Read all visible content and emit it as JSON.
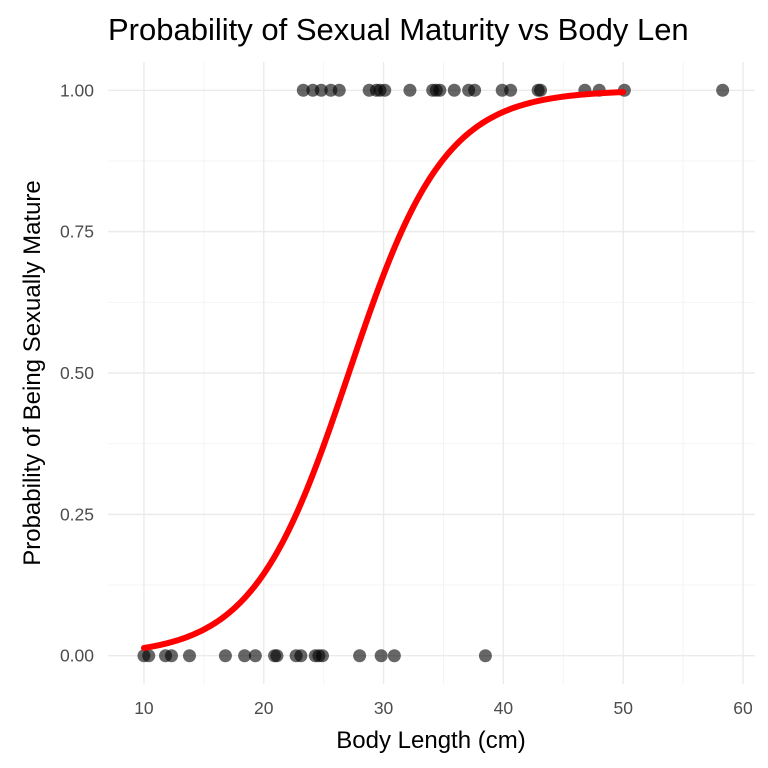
{
  "chart_data": {
    "type": "scatter",
    "title": "Probability of Sexual Maturity vs Body Len",
    "xlabel": "Body Length (cm)",
    "ylabel": "Probability of Being Sexually Mature",
    "xlim": [
      7,
      61
    ],
    "ylim": [
      -0.05,
      1.05
    ],
    "x_ticks": [
      10,
      20,
      30,
      40,
      50,
      60
    ],
    "x_tick_labels": [
      "10",
      "20",
      "30",
      "40",
      "50",
      "60"
    ],
    "y_ticks": [
      0,
      0.25,
      0.5,
      0.75,
      1
    ],
    "y_tick_labels": [
      "0.00",
      "0.25",
      "0.50",
      "0.75",
      "1.00"
    ],
    "grid": true,
    "legend": "none",
    "series": [
      {
        "type": "scatter",
        "color": "#000000",
        "opacity": 0.6,
        "points": [
          {
            "x": 10.0,
            "y": 0
          },
          {
            "x": 10.4,
            "y": 0
          },
          {
            "x": 11.8,
            "y": 0
          },
          {
            "x": 12.3,
            "y": 0
          },
          {
            "x": 13.8,
            "y": 0
          },
          {
            "x": 16.8,
            "y": 0
          },
          {
            "x": 18.4,
            "y": 0
          },
          {
            "x": 19.3,
            "y": 0
          },
          {
            "x": 20.9,
            "y": 0
          },
          {
            "x": 21.1,
            "y": 0
          },
          {
            "x": 22.7,
            "y": 0
          },
          {
            "x": 23.1,
            "y": 0
          },
          {
            "x": 24.3,
            "y": 0
          },
          {
            "x": 24.6,
            "y": 0
          },
          {
            "x": 24.9,
            "y": 0
          },
          {
            "x": 28.0,
            "y": 0
          },
          {
            "x": 29.8,
            "y": 0
          },
          {
            "x": 30.9,
            "y": 0
          },
          {
            "x": 38.5,
            "y": 0
          },
          {
            "x": 23.3,
            "y": 1
          },
          {
            "x": 24.1,
            "y": 1
          },
          {
            "x": 24.8,
            "y": 1
          },
          {
            "x": 25.6,
            "y": 1
          },
          {
            "x": 26.3,
            "y": 1
          },
          {
            "x": 28.8,
            "y": 1
          },
          {
            "x": 29.4,
            "y": 1
          },
          {
            "x": 29.7,
            "y": 1
          },
          {
            "x": 30.1,
            "y": 1
          },
          {
            "x": 32.2,
            "y": 1
          },
          {
            "x": 34.1,
            "y": 1
          },
          {
            "x": 34.4,
            "y": 1
          },
          {
            "x": 34.7,
            "y": 1
          },
          {
            "x": 35.9,
            "y": 1
          },
          {
            "x": 37.1,
            "y": 1
          },
          {
            "x": 37.6,
            "y": 1
          },
          {
            "x": 39.9,
            "y": 1
          },
          {
            "x": 40.6,
            "y": 1
          },
          {
            "x": 42.9,
            "y": 1
          },
          {
            "x": 43.1,
            "y": 1
          },
          {
            "x": 46.8,
            "y": 1
          },
          {
            "x": 48.0,
            "y": 1
          },
          {
            "x": 50.1,
            "y": 1
          },
          {
            "x": 58.3,
            "y": 1
          }
        ]
      },
      {
        "type": "line",
        "color": "#ff0000",
        "x_range": [
          10,
          50
        ],
        "logistic": {
          "midpoint": 27.1,
          "slope": 0.25
        }
      }
    ]
  }
}
